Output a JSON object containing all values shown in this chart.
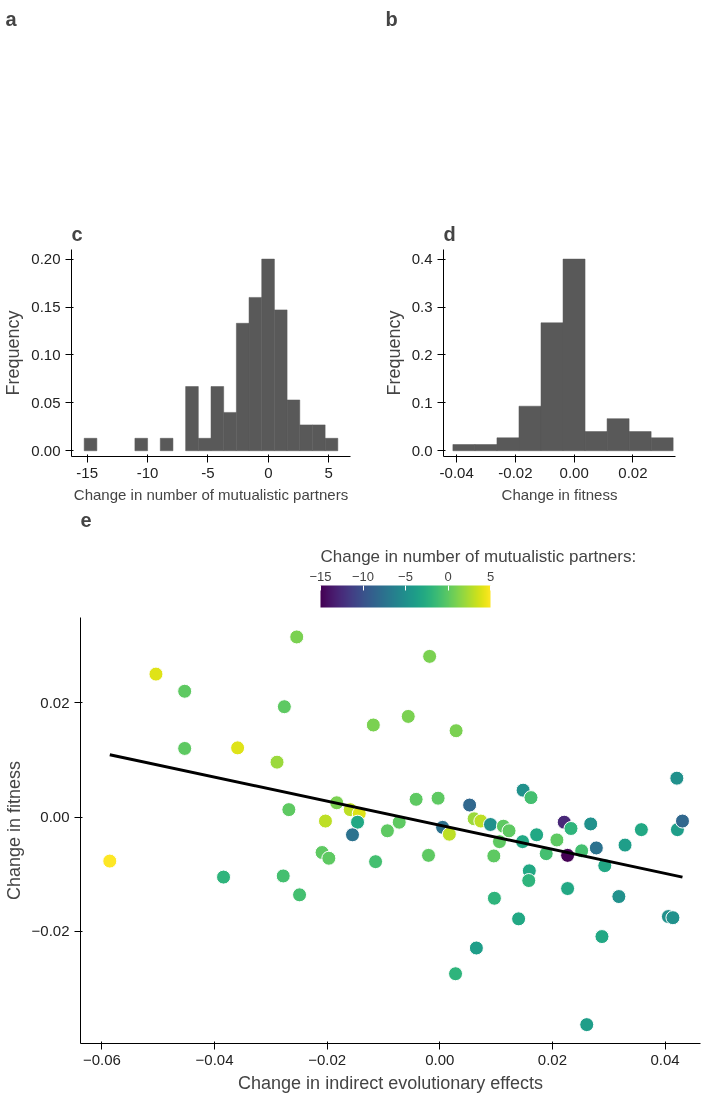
{
  "chart_data": [
    {
      "type": "other",
      "title": "a"
    },
    {
      "type": "other",
      "title": "b"
    },
    {
      "type": "histogram",
      "title": "c",
      "xlabel": "Change in number of mutualistic partners",
      "ylabel": "Frequency",
      "color": "#595959",
      "bins": [
        -15.25,
        -14.2,
        -13.15,
        -12.1,
        -11.05,
        -10.0,
        -8.95,
        -7.9,
        -6.85,
        -5.8,
        -4.75,
        -3.7,
        -2.65,
        -1.6,
        -0.55,
        0.5,
        1.55,
        2.6,
        3.65,
        4.7,
        5.75
      ],
      "values": [
        0.013,
        0,
        0,
        0,
        0.013,
        0,
        0.013,
        0,
        0.067,
        0.013,
        0.067,
        0.04,
        0.133,
        0.16,
        0.2,
        0.147,
        0.053,
        0.027,
        0.027,
        0.013
      ],
      "xlim": [
        -16.3,
        6.8
      ],
      "ylim": [
        -0.006,
        0.21
      ],
      "xticks": [
        -15,
        -10,
        -5,
        0,
        5
      ],
      "yticks": [
        {
          "value": 0,
          "label": "0.00"
        },
        {
          "value": 0.05,
          "label": "0.05"
        },
        {
          "value": 0.1,
          "label": "0.10"
        },
        {
          "value": 0.15,
          "label": "0.15"
        },
        {
          "value": 0.2,
          "label": "0.20"
        }
      ],
      "grid": false
    },
    {
      "type": "histogram",
      "title": "d",
      "xlabel": "Change in fitness",
      "ylabel": "Frequency",
      "color": "#595959",
      "bins": [
        -0.0413,
        -0.0338,
        -0.0263,
        -0.0188,
        -0.0113,
        -0.0038,
        0.0037,
        0.0112,
        0.0187,
        0.0262,
        0.0337
      ],
      "values": [
        0.013,
        0.013,
        0.027,
        0.093,
        0.267,
        0.4,
        0.04,
        0.067,
        0.04,
        0.027
      ],
      "xlim": [
        -0.0445,
        0.0345
      ],
      "ylim": [
        -0.012,
        0.42
      ],
      "xticks": [
        {
          "value": -0.04,
          "label": "-0.04"
        },
        {
          "value": -0.02,
          "label": "-0.02"
        },
        {
          "value": 0,
          "label": "0.00"
        },
        {
          "value": 0.02,
          "label": "0.02"
        }
      ],
      "yticks": [
        {
          "value": 0,
          "label": "0.0"
        },
        0.1,
        0.2,
        0.3,
        0.4
      ],
      "grid": false
    },
    {
      "type": "scatter",
      "title": "e",
      "xlabel": "Change in indirect evolutionary effects",
      "ylabel": "Change in fitness",
      "clabel": "Change in number of mutualistic partners:",
      "clim": [
        -15,
        5
      ],
      "cticks": [
        -15,
        -10,
        -5,
        0,
        5
      ],
      "xlim": [
        -0.0638,
        0.0463
      ],
      "ylim": [
        -0.0396,
        0.0349
      ],
      "xticks": [
        {
          "value": -0.06,
          "label": "−0.06"
        },
        {
          "value": -0.04,
          "label": "−0.04"
        },
        {
          "value": -0.02,
          "label": "−0.02"
        },
        {
          "value": 0,
          "label": "0.00"
        },
        {
          "value": 0.02,
          "label": "0.02"
        },
        {
          "value": 0.04,
          "label": "0.04"
        }
      ],
      "yticks": [
        {
          "value": -0.02,
          "label": "−0.02"
        },
        {
          "value": 0,
          "label": "0.00"
        },
        {
          "value": 0.02,
          "label": "0.02"
        }
      ],
      "grid": false,
      "series": [
        {
          "type": "scatter",
          "marker": "circle",
          "x": [
            -0.0586,
            -0.0504,
            -0.0453,
            -0.0453,
            -0.0359,
            -0.0384,
            -0.0254,
            -0.0276,
            -0.0289,
            -0.0268,
            -0.0278,
            -0.0249,
            -0.0183,
            -0.0203,
            -0.0159,
            -0.0143,
            -0.0146,
            -0.0155,
            -0.0209,
            -0.0197,
            -0.0118,
            -0.0114,
            -0.0093,
            -0.0072,
            -0.0056,
            -0.0042,
            -0.0018,
            -0.002,
            -0.0003,
            0.0005,
            0.0017,
            0.0029,
            0.0028,
            0.0053,
            0.0061,
            0.0073,
            0.009,
            0.0096,
            0.0106,
            0.0113,
            0.0123,
            0.0097,
            0.0065,
            0.014,
            0.0147,
            0.0148,
            0.0162,
            0.0159,
            0.0158,
            0.0172,
            0.0189,
            0.0208,
            0.0221,
            0.0233,
            0.0227,
            0.0227,
            0.0252,
            0.0268,
            0.0278,
            0.0293,
            0.0288,
            0.0261,
            0.0318,
            0.0329,
            0.0358,
            0.0406,
            0.0414,
            0.0421,
            0.0422,
            0.0431
          ],
          "values": [
            -0.0077,
            0.025,
            0.022,
            0.012,
            0.0121,
            -0.0105,
            0.0315,
            0.0193,
            0.0096,
            0.0013,
            -0.0103,
            -0.0136,
            0.0025,
            -0.0007,
            0.0013,
            0.0006,
            -0.0009,
            -0.0031,
            -0.0062,
            -0.0072,
            0.0161,
            -0.0078,
            -0.0024,
            -0.0009,
            0.0176,
            0.0031,
            0.0281,
            -0.0067,
            0.0033,
            -0.0018,
            -0.003,
            0.0151,
            -0.0274,
            0.0021,
            -0.0003,
            -0.0007,
            -0.0013,
            -0.0068,
            -0.0043,
            -0.0016,
            -0.0024,
            -0.0142,
            -0.0229,
            -0.0178,
            -0.0043,
            0.0047,
            0.0034,
            -0.0094,
            -0.0111,
            -0.0031,
            -0.0064,
            -0.004,
            -0.0009,
            -0.002,
            -0.0067,
            -0.0125,
            -0.0059,
            -0.0012,
            -0.0054,
            -0.0085,
            -0.0209,
            -0.0363,
            -0.0139,
            -0.0049,
            -0.0022,
            -0.0174,
            -0.0176,
            0.0068,
            -0.0022,
            -0.0007
          ],
          "colors": [
            "#fde725",
            "#dfe318",
            "#5ec962",
            "#5ec962",
            "#dfe318",
            "#2fb47c",
            "#7ad151",
            "#5ec962",
            "#9bd93c",
            "#5ec962",
            "#44bf70",
            "#44bf70",
            "#7ad151",
            "#bddf26",
            "#bddf26",
            "#dfe318",
            "#22a884",
            "#2c728e",
            "#5ec962",
            "#5ec962",
            "#7ad151",
            "#44bf70",
            "#5ec962",
            "#5ec962",
            "#7ad151",
            "#5ec962",
            "#7ad151",
            "#5ec962",
            "#5ec962",
            "#2c728e",
            "#bddf26",
            "#7ad151",
            "#2fb47c",
            "#31688e",
            "#9bd93c",
            "#bddf26",
            "#21918c",
            "#5ec962",
            "#5ec962",
            "#5ec962",
            "#5ec962",
            "#2fb47c",
            "#1f9e89",
            "#22a884",
            "#22a884",
            "#21918c",
            "#44bf70",
            "#22a884",
            "#2fb47c",
            "#22a884",
            "#44bf70",
            "#5ec962",
            "#482878",
            "#2fb47c",
            "#440154",
            "#22a884",
            "#44bf70",
            "#21918c",
            "#2c728e",
            "#22a884",
            "#22a884",
            "#1f9e89",
            "#21918c",
            "#1f9e89",
            "#22a884",
            "#21918c",
            "#21918c",
            "#21918c",
            "#1f9e89",
            "#31688e"
          ]
        },
        {
          "type": "line",
          "color": "#000000",
          "x": [
            -0.0586,
            0.0431
          ],
          "values": [
            0.0109,
            -0.0105
          ]
        }
      ]
    }
  ]
}
